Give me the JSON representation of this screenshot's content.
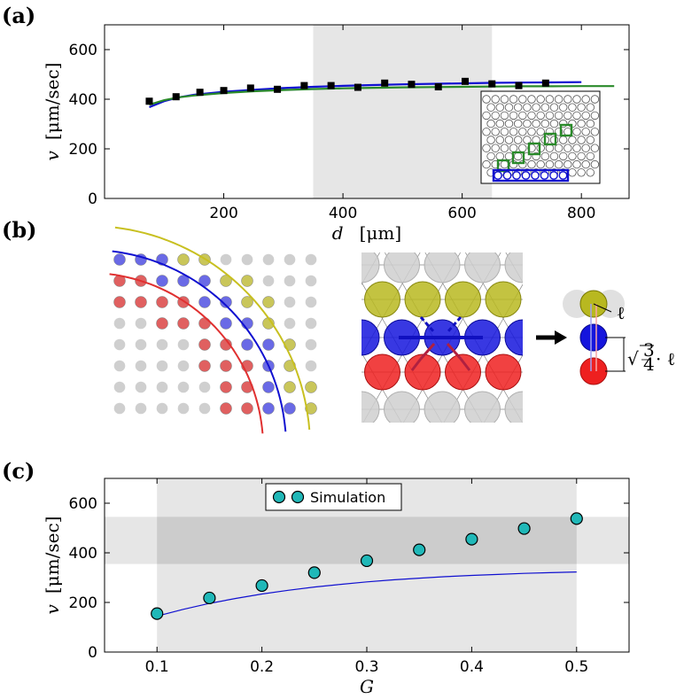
{
  "panels": {
    "a_label": "(a)",
    "b_label": "(b)",
    "c_label": "(c)"
  },
  "panel_b": {
    "arrow_label": "→",
    "ell_label": "ℓ",
    "sqrt_label_prefix": "√",
    "frac_num": "3",
    "frac_den": "4",
    "sqrt_label_suffix": "· ℓ"
  },
  "colors": {
    "blue": "#1010d0",
    "green": "#2a8a2a",
    "red": "#e03030",
    "yellow": "#c8c020",
    "cyan": "#20b8b8",
    "shade": "#e6e6e6",
    "shade_dark": "#cccccc"
  },
  "chart_data": [
    {
      "type": "scatter",
      "panel": "a",
      "title": "",
      "xlabel_var": "d",
      "xlabel_unit": "[μm]",
      "ylabel_var": "v",
      "ylabel_unit": "[μm/sec]",
      "xlim": [
        0,
        880
      ],
      "ylim": [
        0,
        700
      ],
      "xticks": [
        200,
        400,
        600,
        800
      ],
      "xtick_labels": [
        "200",
        "400",
        "600",
        "800"
      ],
      "yticks": [
        0,
        200,
        400,
        600
      ],
      "ytick_labels": [
        "0",
        "200",
        "400",
        "600"
      ],
      "shaded_x_range": [
        350,
        650
      ],
      "points": {
        "name": "Simulation (squares)",
        "x": [
          75,
          120,
          160,
          200,
          245,
          290,
          335,
          380,
          425,
          470,
          515,
          560,
          605,
          650,
          695,
          740
        ],
        "y": [
          392,
          410,
          428,
          435,
          445,
          440,
          455,
          455,
          448,
          465,
          460,
          450,
          472,
          462,
          455,
          465
        ]
      },
      "series": [
        {
          "name": "blue fit",
          "color": "#1010d0",
          "x": [
            75,
            100,
            125,
            150,
            200,
            250,
            300,
            350,
            400,
            450,
            500,
            550,
            600,
            650,
            700,
            750,
            800
          ],
          "y": [
            368,
            392,
            408,
            418,
            430,
            438,
            445,
            450,
            454,
            457,
            460,
            462,
            464,
            466,
            467,
            468,
            469
          ]
        },
        {
          "name": "green fit",
          "color": "#2a8a2a",
          "x": [
            75,
            100,
            125,
            150,
            200,
            250,
            300,
            350,
            400,
            450,
            500,
            550,
            600,
            650,
            700,
            750,
            800,
            855
          ],
          "y": [
            378,
            396,
            408,
            415,
            425,
            432,
            437,
            441,
            444,
            446,
            448,
            449,
            450,
            451,
            452,
            452,
            453,
            453
          ]
        }
      ]
    },
    {
      "type": "scatter",
      "panel": "c",
      "title": "",
      "xlabel_var": "G",
      "ylabel_var": "v",
      "ylabel_unit": "[μm/sec]",
      "xlim": [
        0.05,
        0.55
      ],
      "ylim": [
        0,
        700
      ],
      "xticks": [
        0.1,
        0.2,
        0.3,
        0.4,
        0.5
      ],
      "xtick_labels": [
        "0.1",
        "0.2",
        "0.3",
        "0.4",
        "0.5"
      ],
      "yticks": [
        0,
        200,
        400,
        600
      ],
      "ytick_labels": [
        "0",
        "200",
        "400",
        "600"
      ],
      "shaded_x_range": [
        0.1,
        0.5
      ],
      "shaded_y_range": [
        355,
        545
      ],
      "legend": {
        "position": "top-center",
        "entries": [
          "Simulation"
        ]
      },
      "points": {
        "name": "Simulation",
        "x": [
          0.1,
          0.15,
          0.2,
          0.25,
          0.3,
          0.35,
          0.4,
          0.45,
          0.5
        ],
        "y": [
          155,
          218,
          268,
          320,
          368,
          412,
          455,
          498,
          538
        ]
      },
      "series": [
        {
          "name": "theory",
          "color": "#1010d0",
          "x": [
            0.1,
            0.125,
            0.15,
            0.175,
            0.2,
            0.225,
            0.25,
            0.275,
            0.3,
            0.325,
            0.35,
            0.375,
            0.4,
            0.425,
            0.45,
            0.475,
            0.5
          ],
          "y": [
            145,
            172,
            196,
            216,
            234,
            249,
            262,
            273,
            283,
            291,
            298,
            304,
            309,
            313,
            317,
            320,
            323
          ]
        }
      ]
    }
  ]
}
